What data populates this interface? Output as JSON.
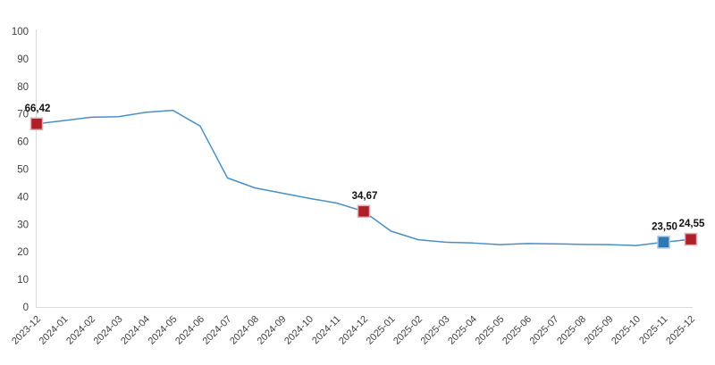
{
  "page": {
    "background_color": "#ffffff"
  },
  "chart_data": {
    "type": "line",
    "title": "",
    "xlabel": "",
    "ylabel": "",
    "ylim": [
      0,
      100
    ],
    "y_ticks": [
      0,
      10,
      20,
      30,
      40,
      50,
      60,
      70,
      80,
      90,
      100
    ],
    "grid": false,
    "legend": false,
    "x_tick_rotation": -45,
    "decimal_separator": ",",
    "series_color": "#4a8fc4",
    "axis_color": "#d9d9d9",
    "tick_label_color": "#3f3f3f",
    "data_label_color": "#111111",
    "categories": [
      "2023-12",
      "2024-01",
      "2024-02",
      "2024-03",
      "2024-04",
      "2024-05",
      "2024-06",
      "2024-07",
      "2024-08",
      "2024-09",
      "2024-10",
      "2024-11",
      "2024-12",
      "2025-01",
      "2025-02",
      "2025-03",
      "2025-04",
      "2025-05",
      "2025-06",
      "2025-07",
      "2025-08",
      "2025-09",
      "2025-10",
      "2025-11",
      "2025-12"
    ],
    "values": [
      66.42,
      67.6,
      68.8,
      69.0,
      70.6,
      71.3,
      65.6,
      46.8,
      43.2,
      41.3,
      39.4,
      37.7,
      34.67,
      27.5,
      24.4,
      23.5,
      23.2,
      22.6,
      23.0,
      22.9,
      22.7,
      22.6,
      22.3,
      23.5,
      24.55
    ],
    "markers": [
      {
        "category": "2023-12",
        "value": 66.42,
        "label": "66,42",
        "fill": "#b01e28",
        "border": "#dfaeb2"
      },
      {
        "category": "2024-12",
        "value": 34.67,
        "label": "34,67",
        "fill": "#b01e28",
        "border": "#dfaeb2"
      },
      {
        "category": "2025-11",
        "value": 23.5,
        "label": "23,50",
        "fill": "#2e78b5",
        "border": "#aac9e3"
      },
      {
        "category": "2025-12",
        "value": 24.55,
        "label": "24,55",
        "fill": "#b01e28",
        "border": "#dfaeb2"
      }
    ]
  }
}
